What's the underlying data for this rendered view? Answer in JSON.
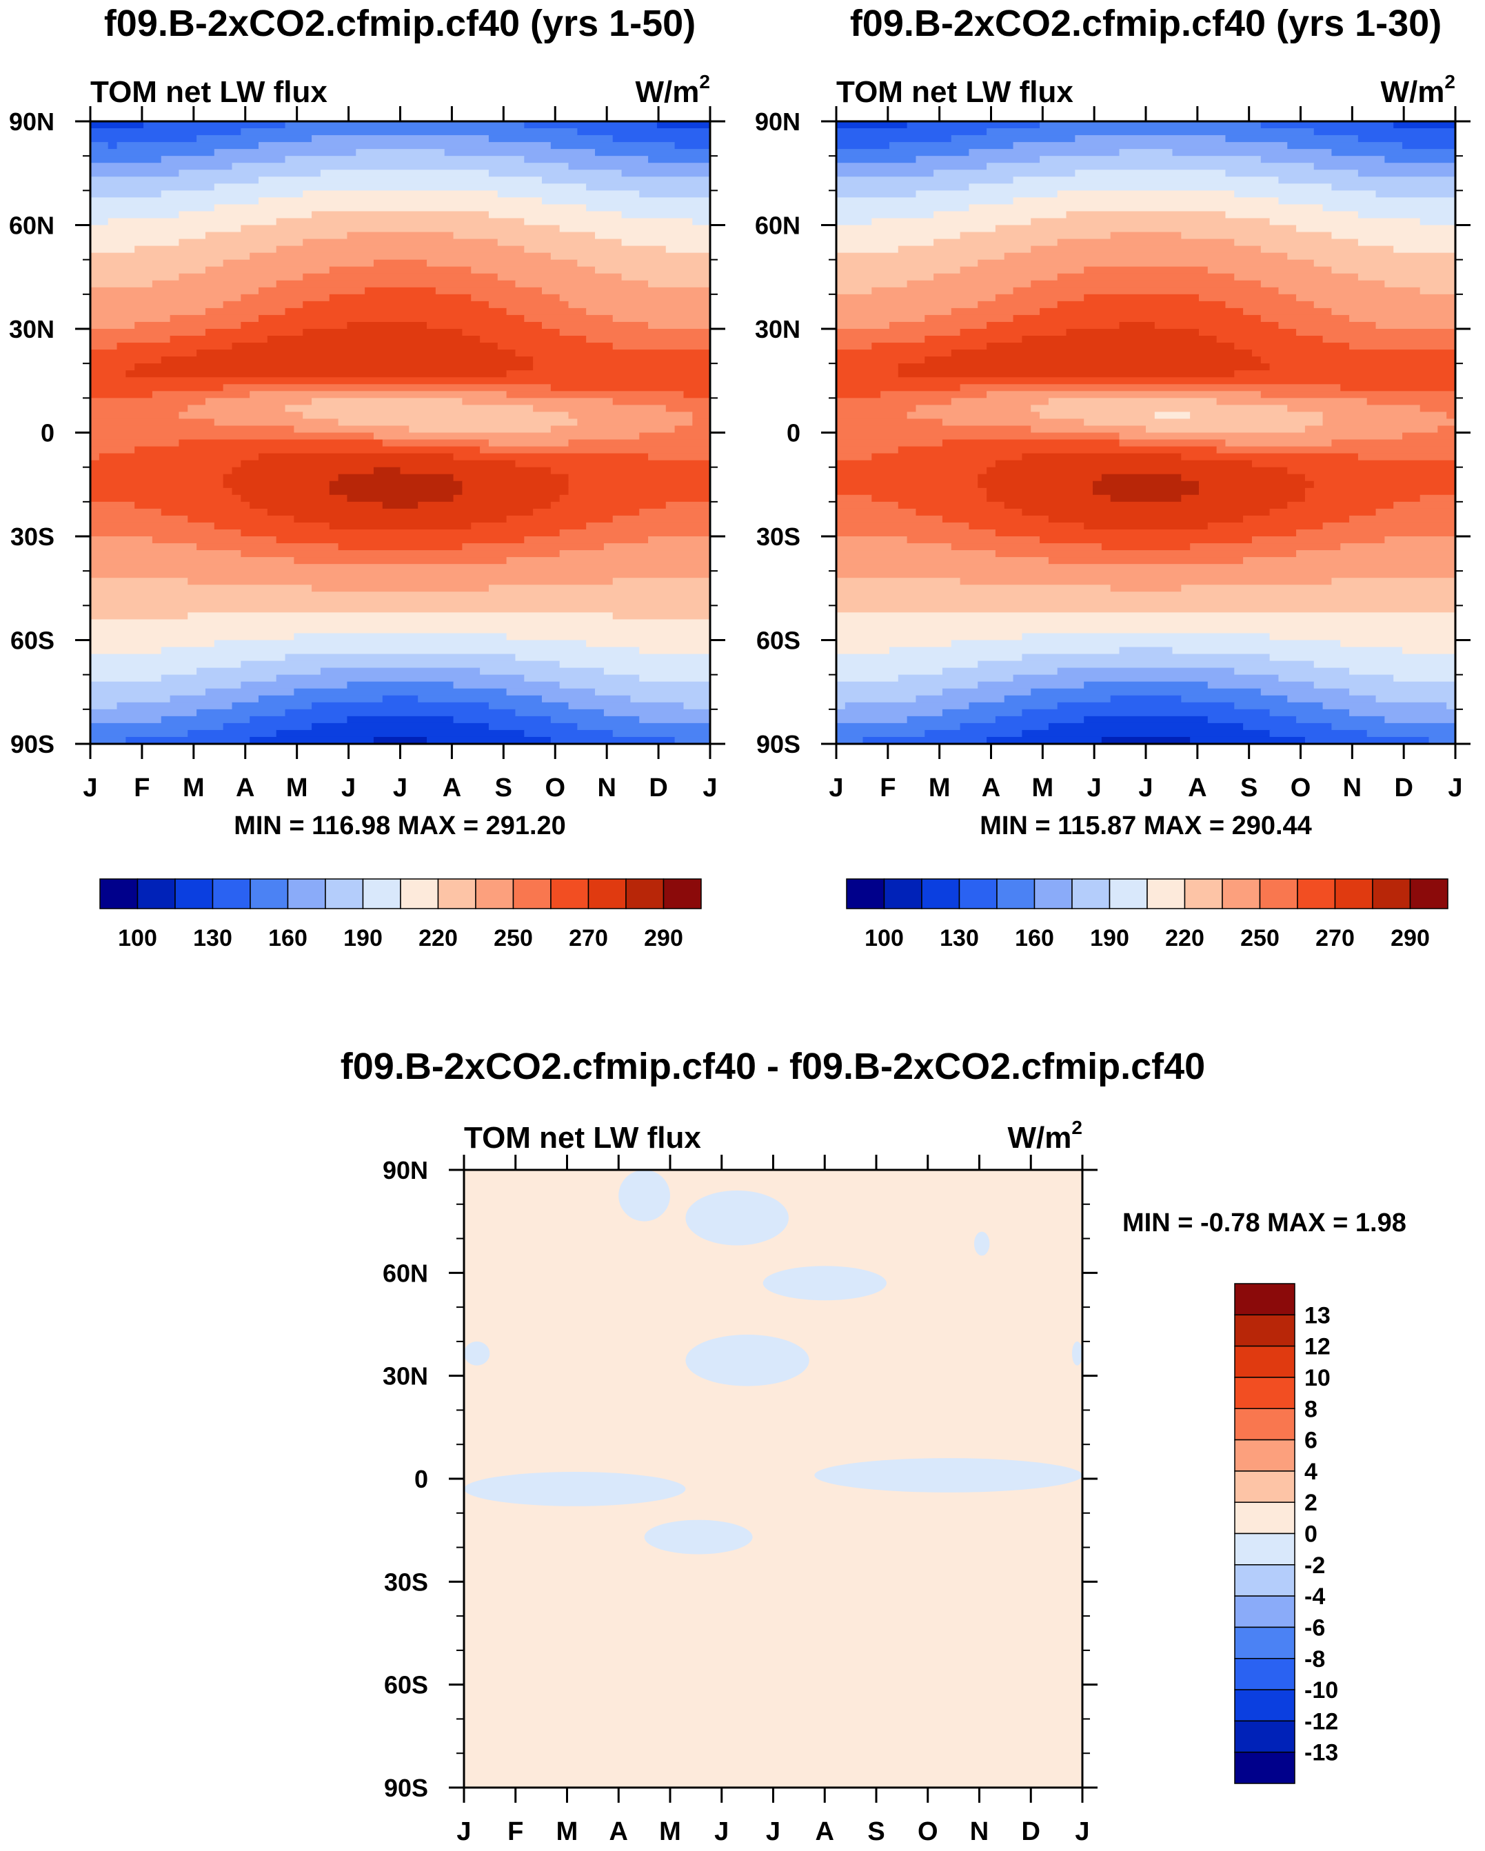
{
  "units": {
    "base": "W/m",
    "sup": "2"
  },
  "colormaps": {
    "abs": [
      "#00008b",
      "#0022b8",
      "#0b3fe0",
      "#2a62f2",
      "#4b82f4",
      "#8aabf9",
      "#b4cdfb",
      "#d9e8fb",
      "#fdeadb",
      "#fdc4a6",
      "#fca07d",
      "#f9774f",
      "#f24e22",
      "#e03a10",
      "#b82608",
      "#8b0a0a"
    ],
    "diff": [
      "#8b0a0a",
      "#b82608",
      "#e03a10",
      "#f24e22",
      "#f9774f",
      "#fca07d",
      "#fdc4a6",
      "#fdeadb",
      "#d9e8fb",
      "#b4cdfb",
      "#8aabf9",
      "#4b82f4",
      "#2a62f2",
      "#0b3fe0",
      "#0022b8",
      "#00008b"
    ]
  },
  "chart_data": [
    {
      "id": "panel-yrs-1-50",
      "type": "heatmap",
      "title": "f09.B-2xCO2.cfmip.cf40 (yrs 1-50)",
      "variable": "TOM net LW flux",
      "xlabel_ticks": [
        "J",
        "F",
        "M",
        "A",
        "M",
        "J",
        "J",
        "A",
        "S",
        "O",
        "N",
        "D",
        "J"
      ],
      "ylabel_ticks": [
        "90N",
        "60N",
        "30N",
        "0",
        "30S",
        "60S",
        "90S"
      ],
      "ylim": [
        -90,
        90
      ],
      "min_label": "MIN = 116.98 MAX = 291.20",
      "min": 116.98,
      "max": 291.2,
      "levels": [
        100,
        115,
        130,
        145,
        160,
        175,
        190,
        205,
        220,
        235,
        250,
        260,
        270,
        280,
        290
      ],
      "colorbar_labels": [
        "100",
        "130",
        "160",
        "190",
        "220",
        "250",
        "270",
        "290"
      ],
      "shift": 0
    },
    {
      "id": "panel-yrs-1-30",
      "type": "heatmap",
      "title": "f09.B-2xCO2.cfmip.cf40 (yrs 1-30)",
      "variable": "TOM net LW flux",
      "xlabel_ticks": [
        "J",
        "F",
        "M",
        "A",
        "M",
        "J",
        "J",
        "A",
        "S",
        "O",
        "N",
        "D",
        "J"
      ],
      "ylabel_ticks": [
        "90N",
        "60N",
        "30N",
        "0",
        "30S",
        "60S",
        "90S"
      ],
      "ylim": [
        -90,
        90
      ],
      "min_label": "MIN = 115.87 MAX = 290.44",
      "min": 115.87,
      "max": 290.44,
      "levels": [
        100,
        115,
        130,
        145,
        160,
        175,
        190,
        205,
        220,
        235,
        250,
        260,
        270,
        280,
        290
      ],
      "colorbar_labels": [
        "100",
        "130",
        "160",
        "190",
        "220",
        "250",
        "270",
        "290"
      ],
      "shift": -0.8
    },
    {
      "id": "panel-difference",
      "type": "heatmap",
      "title": "f09.B-2xCO2.cfmip.cf40 - f09.B-2xCO2.cfmip.cf40",
      "variable": "TOM net LW flux",
      "xlabel_ticks": [
        "J",
        "F",
        "M",
        "A",
        "M",
        "J",
        "J",
        "A",
        "S",
        "O",
        "N",
        "D",
        "J"
      ],
      "ylabel_ticks": [
        "90N",
        "60N",
        "30N",
        "0",
        "30S",
        "60S",
        "90S"
      ],
      "ylim": [
        -90,
        90
      ],
      "min_label": "MIN =  -0.78 MAX =   1.98",
      "min": -0.78,
      "max": 1.98,
      "levels": [
        13,
        12,
        10,
        8,
        6,
        4,
        2,
        0,
        -2,
        -4,
        -6,
        -8,
        -10,
        -12,
        -13
      ],
      "colorbar_labels": [
        "13",
        "12",
        "10",
        "8",
        "6",
        "4",
        "2",
        "0",
        "-2",
        "-4",
        "-6",
        "-8",
        "-10",
        "-12",
        "-13"
      ],
      "dominant_range": [
        0,
        2
      ],
      "negative_regions": [
        {
          "t": [
            3.0,
            4.0
          ],
          "lat": [
            75,
            90
          ]
        },
        {
          "t": [
            4.3,
            6.3
          ],
          "lat": [
            68,
            84
          ]
        },
        {
          "t": [
            5.8,
            8.2
          ],
          "lat": [
            52,
            62
          ]
        },
        {
          "t": [
            4.3,
            6.7
          ],
          "lat": [
            27,
            42
          ]
        },
        {
          "t": [
            0.0,
            0.5
          ],
          "lat": [
            33,
            40
          ]
        },
        {
          "t": [
            0.0,
            4.3
          ],
          "lat": [
            -8,
            2
          ]
        },
        {
          "t": [
            3.5,
            5.6
          ],
          "lat": [
            -22,
            -12
          ]
        },
        {
          "t": [
            6.8,
            12.0
          ],
          "lat": [
            -4,
            6
          ]
        },
        {
          "t": [
            11.8,
            12.0
          ],
          "lat": [
            33,
            40
          ]
        },
        {
          "t": [
            9.9,
            10.2
          ],
          "lat": [
            65,
            72
          ]
        }
      ]
    }
  ]
}
